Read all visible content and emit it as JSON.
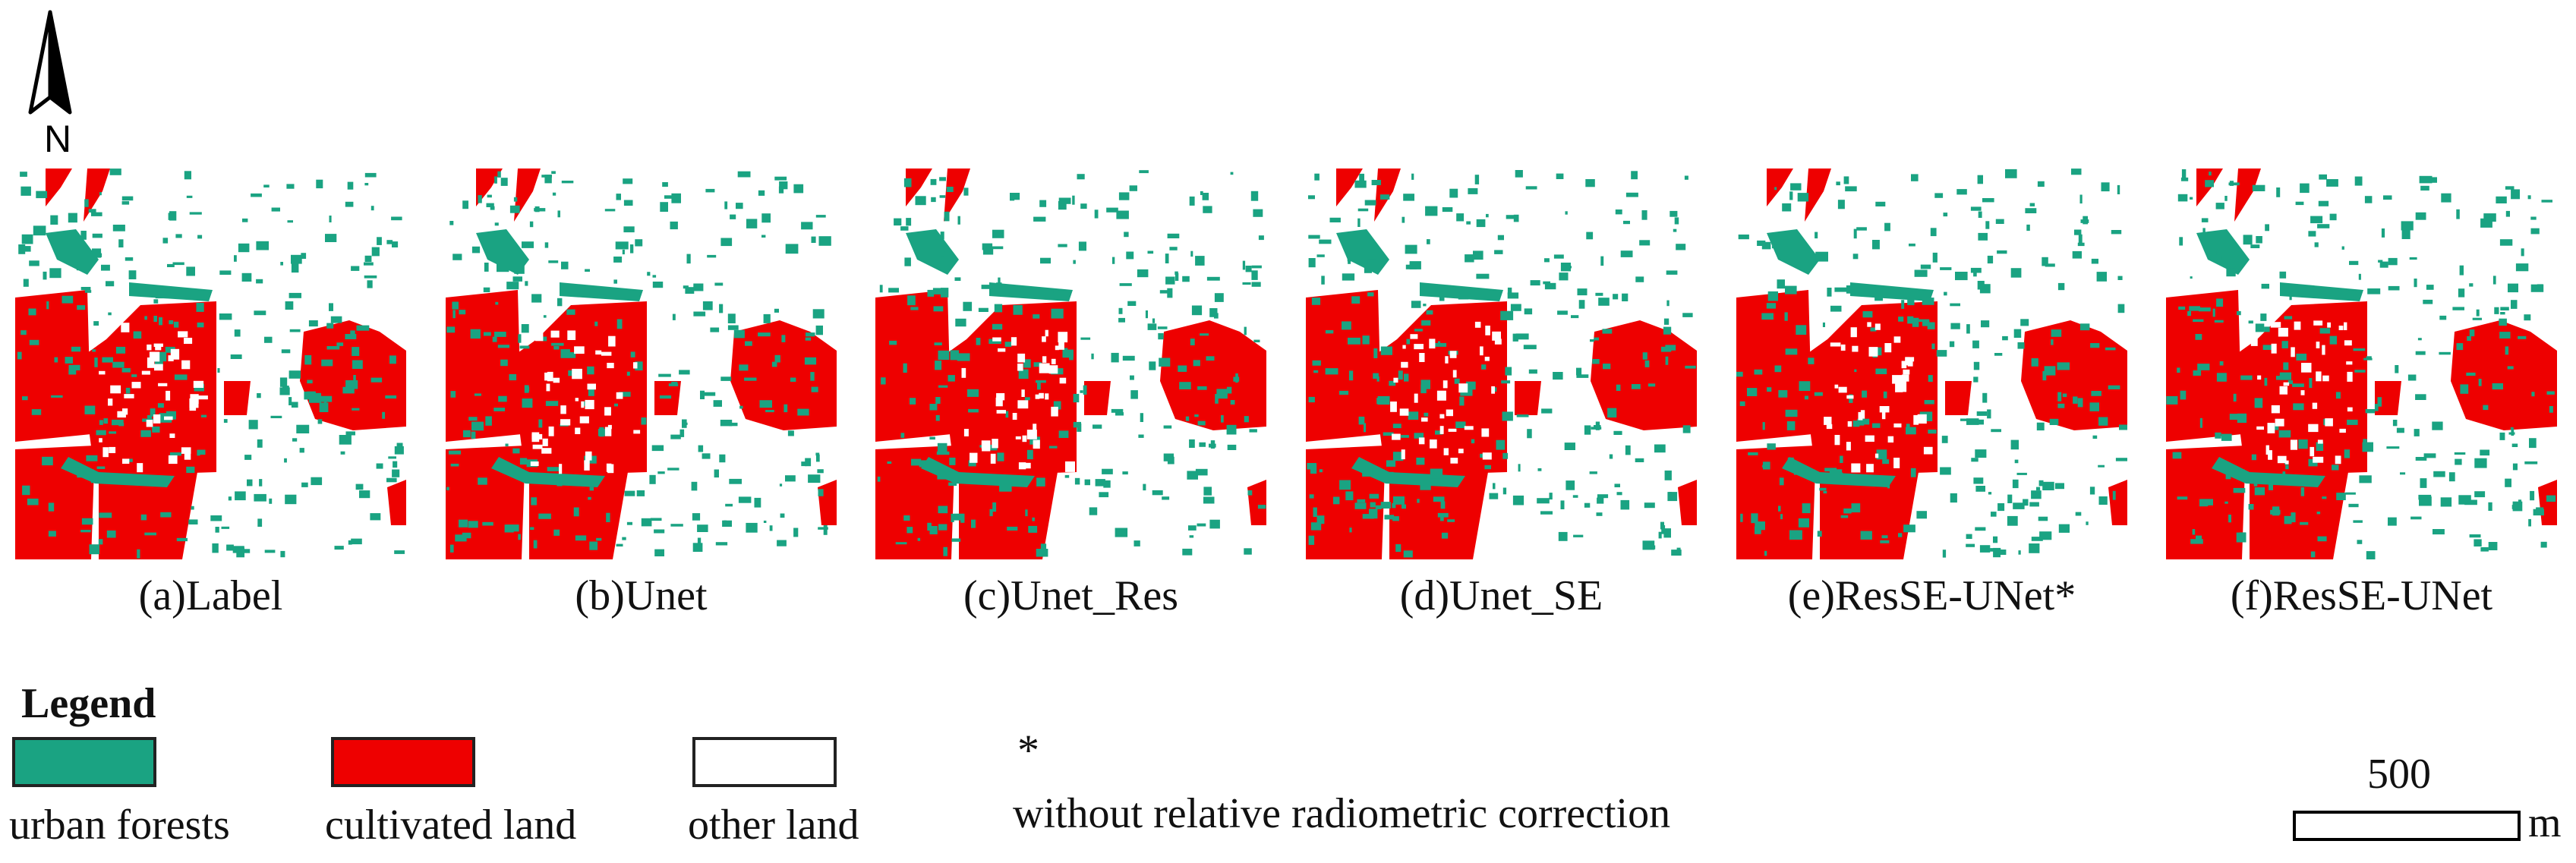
{
  "north_arrow": {
    "letter": "N",
    "icon": "north-arrow-icon"
  },
  "colors": {
    "urban_forests": "#1aa382",
    "cultivated_land": "#ee0000",
    "other_land": "#ffffff"
  },
  "panels": [
    {
      "caption": "(a)Label"
    },
    {
      "caption": "(b)Unet"
    },
    {
      "caption": "(c)Unet_Res"
    },
    {
      "caption": "(d)Unet_SE"
    },
    {
      "caption": "(e)ResSE-UNet*"
    },
    {
      "caption": "(f)ResSE-UNet"
    }
  ],
  "legend": {
    "title": "Legend",
    "items": [
      {
        "label": "urban forests",
        "color": "#1aa382"
      },
      {
        "label": "cultivated land",
        "color": "#ee0000"
      },
      {
        "label": "other land",
        "color": "#ffffff"
      }
    ]
  },
  "note": {
    "marker": "*",
    "text": "without relative radiometric correction"
  },
  "scale_bar": {
    "value": "500",
    "unit": "m"
  }
}
